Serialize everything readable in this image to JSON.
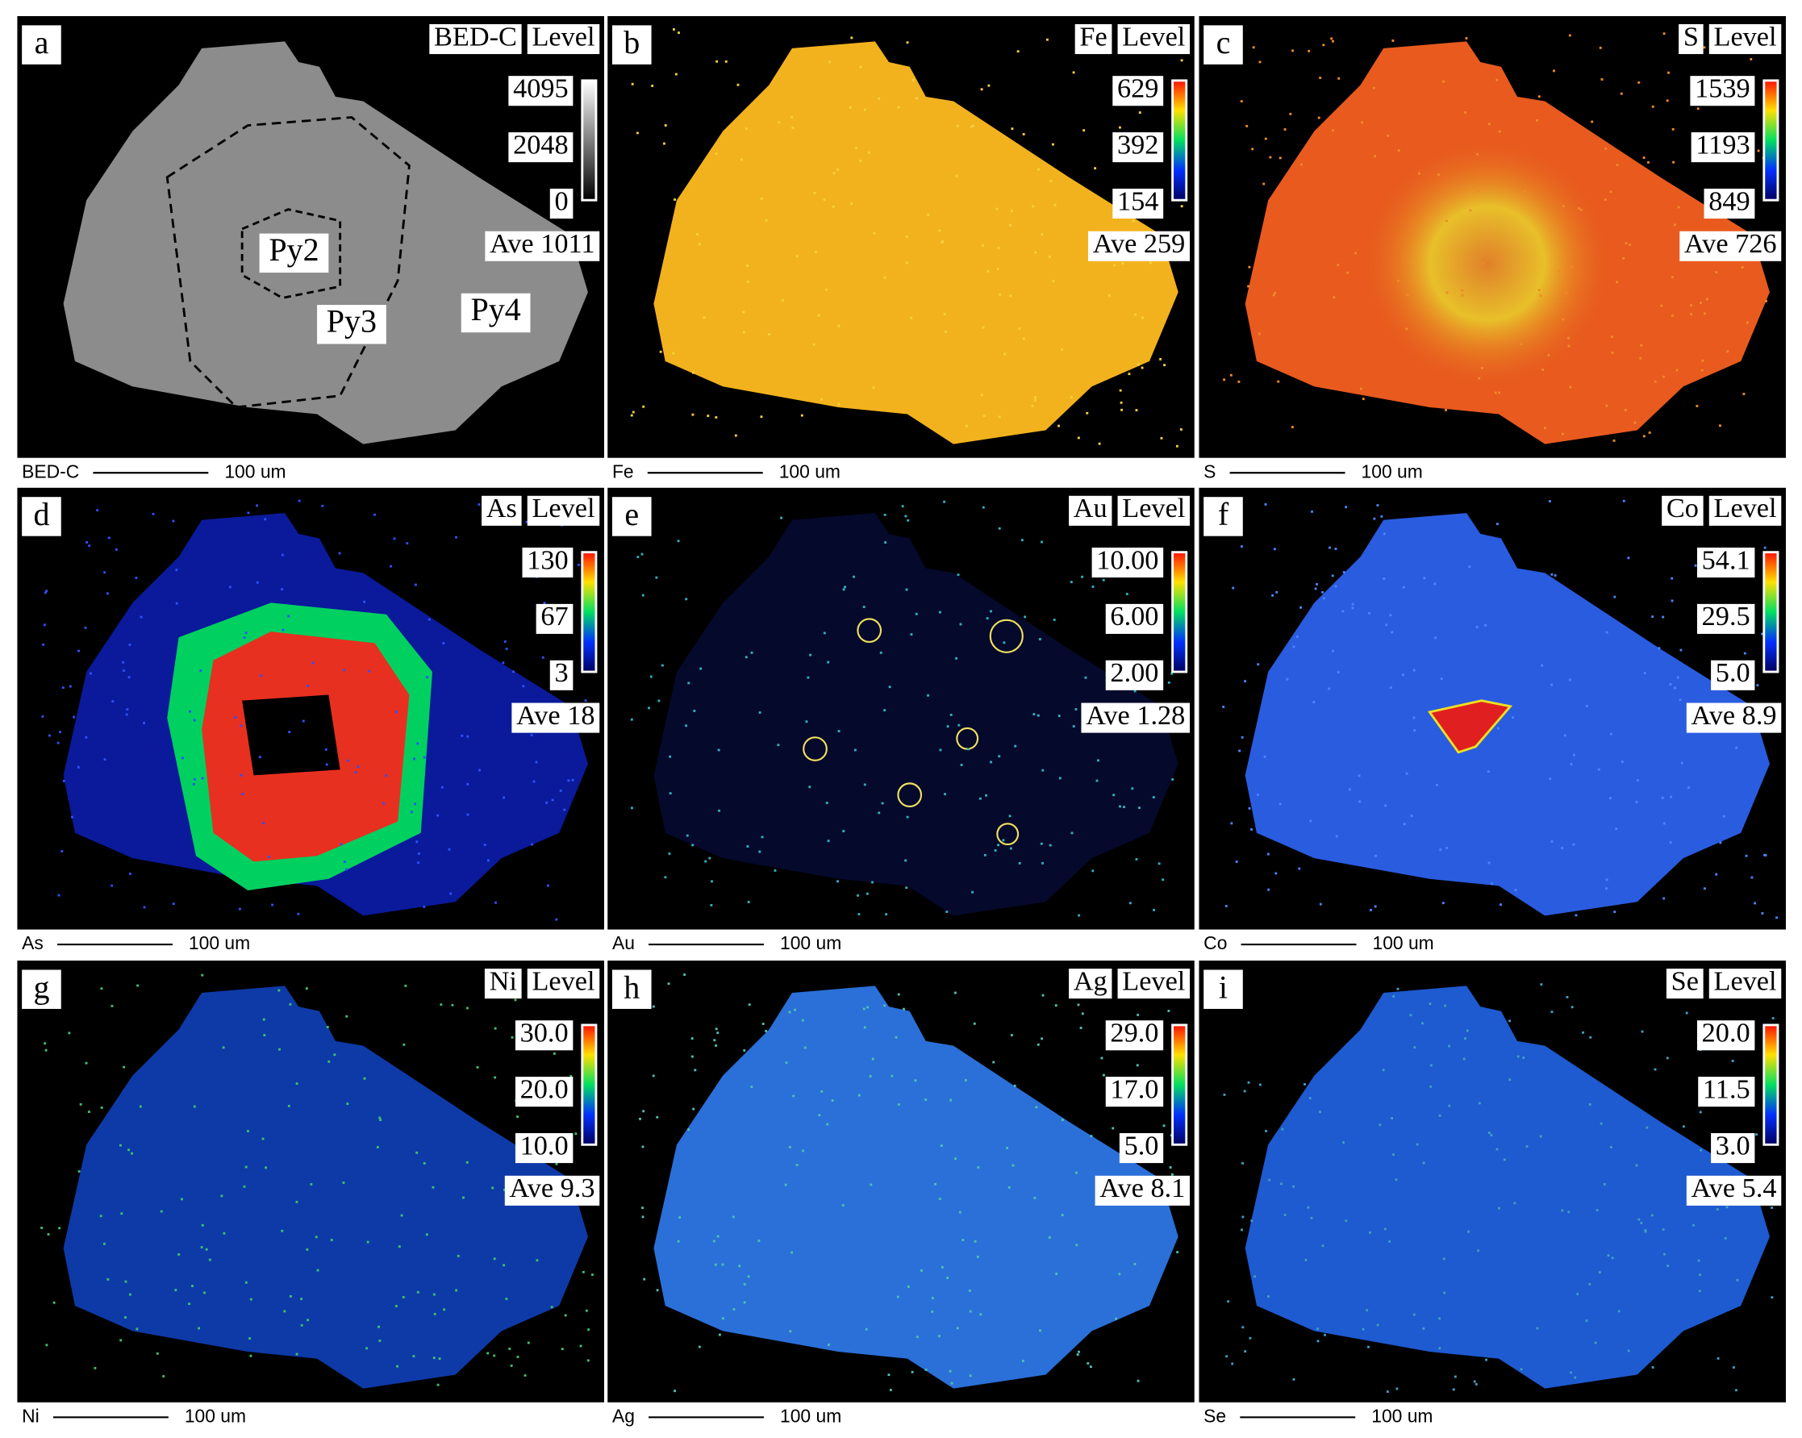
{
  "panels": [
    {
      "letter": "a",
      "element": "BED-C",
      "level": "Level",
      "levels": [
        "4095",
        "2048",
        "0"
      ],
      "average": "Ave 1011",
      "caption": "BED-C",
      "scale": "100 um",
      "phases": [
        "Py2",
        "Py3",
        "Py4"
      ]
    },
    {
      "letter": "b",
      "element": "Fe",
      "level": "Level",
      "levels": [
        "629",
        "392",
        "154"
      ],
      "average": "Ave 259",
      "caption": "Fe",
      "scale": "100 um"
    },
    {
      "letter": "c",
      "element": "S",
      "level": "Level",
      "levels": [
        "1539",
        "1193",
        "849"
      ],
      "average": "Ave 726",
      "caption": "S",
      "scale": "100 um"
    },
    {
      "letter": "d",
      "element": "As",
      "level": "Level",
      "levels": [
        "130",
        "67",
        "3"
      ],
      "average": "Ave 18",
      "caption": "As",
      "scale": "100 um"
    },
    {
      "letter": "e",
      "element": "Au",
      "level": "Level",
      "levels": [
        "10.00",
        "6.00",
        "2.00"
      ],
      "average": "Ave 1.28",
      "caption": "Au",
      "scale": "100 um"
    },
    {
      "letter": "f",
      "element": "Co",
      "level": "Level",
      "levels": [
        "54.1",
        "29.5",
        "5.0"
      ],
      "average": "Ave 8.9",
      "caption": "Co",
      "scale": "100 um"
    },
    {
      "letter": "g",
      "element": "Ni",
      "level": "Level",
      "levels": [
        "30.0",
        "20.0",
        "10.0"
      ],
      "average": "Ave 9.3",
      "caption": "Ni",
      "scale": "100 um"
    },
    {
      "letter": "h",
      "element": "Ag",
      "level": "Level",
      "levels": [
        "29.0",
        "17.0",
        "5.0"
      ],
      "average": "Ave 8.1",
      "caption": "Ag",
      "scale": "100 um"
    },
    {
      "letter": "i",
      "element": "Se",
      "level": "Level",
      "levels": [
        "20.0",
        "11.5",
        "3.0"
      ],
      "average": "Ave 5.4",
      "caption": "Se",
      "scale": "100 um"
    }
  ]
}
